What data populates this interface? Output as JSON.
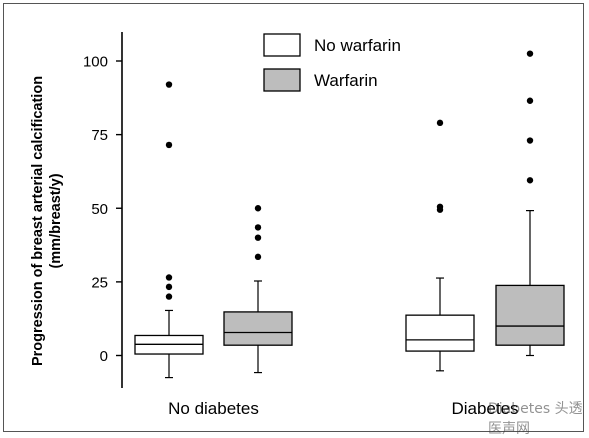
{
  "chart_data": {
    "type": "boxplot",
    "ylabel_lines": [
      "Progression of breast arterial calcification",
      "(mm/breast/y)"
    ],
    "ylim": [
      -12,
      110
    ],
    "yticks": [
      0,
      25,
      50,
      75,
      100
    ],
    "categories": [
      "No diabetes",
      "Diabetes"
    ],
    "legend_position": "top-center",
    "series": [
      {
        "name": "No warfarin",
        "color": "#ffffff",
        "boxes": [
          {
            "category": "No diabetes",
            "whisker_low": -7.5,
            "q1": 0.5,
            "median": 3.8,
            "q3": 6.8,
            "whisker_high": 15.3,
            "outliers": [
              20,
              23.3,
              26.5,
              71.5,
              92
            ]
          },
          {
            "category": "Diabetes",
            "whisker_low": -5.2,
            "q1": 1.5,
            "median": 5.3,
            "q3": 13.7,
            "whisker_high": 26.3,
            "outliers": [
              49.5,
              50.5,
              79
            ]
          }
        ]
      },
      {
        "name": "Warfarin",
        "color": "#bdbdbd",
        "boxes": [
          {
            "category": "No diabetes",
            "whisker_low": -5.8,
            "q1": 3.5,
            "median": 7.8,
            "q3": 14.8,
            "whisker_high": 25.3,
            "outliers": [
              33.5,
              40,
              43.5,
              50
            ]
          },
          {
            "category": "Diabetes",
            "whisker_low": 0,
            "q1": 3.5,
            "median": 10,
            "q3": 23.8,
            "whisker_high": 49.2,
            "outliers": [
              59.5,
              73,
              86.5,
              102.5
            ]
          }
        ]
      }
    ]
  },
  "watermark_text": "Diabetes 头透医声网"
}
